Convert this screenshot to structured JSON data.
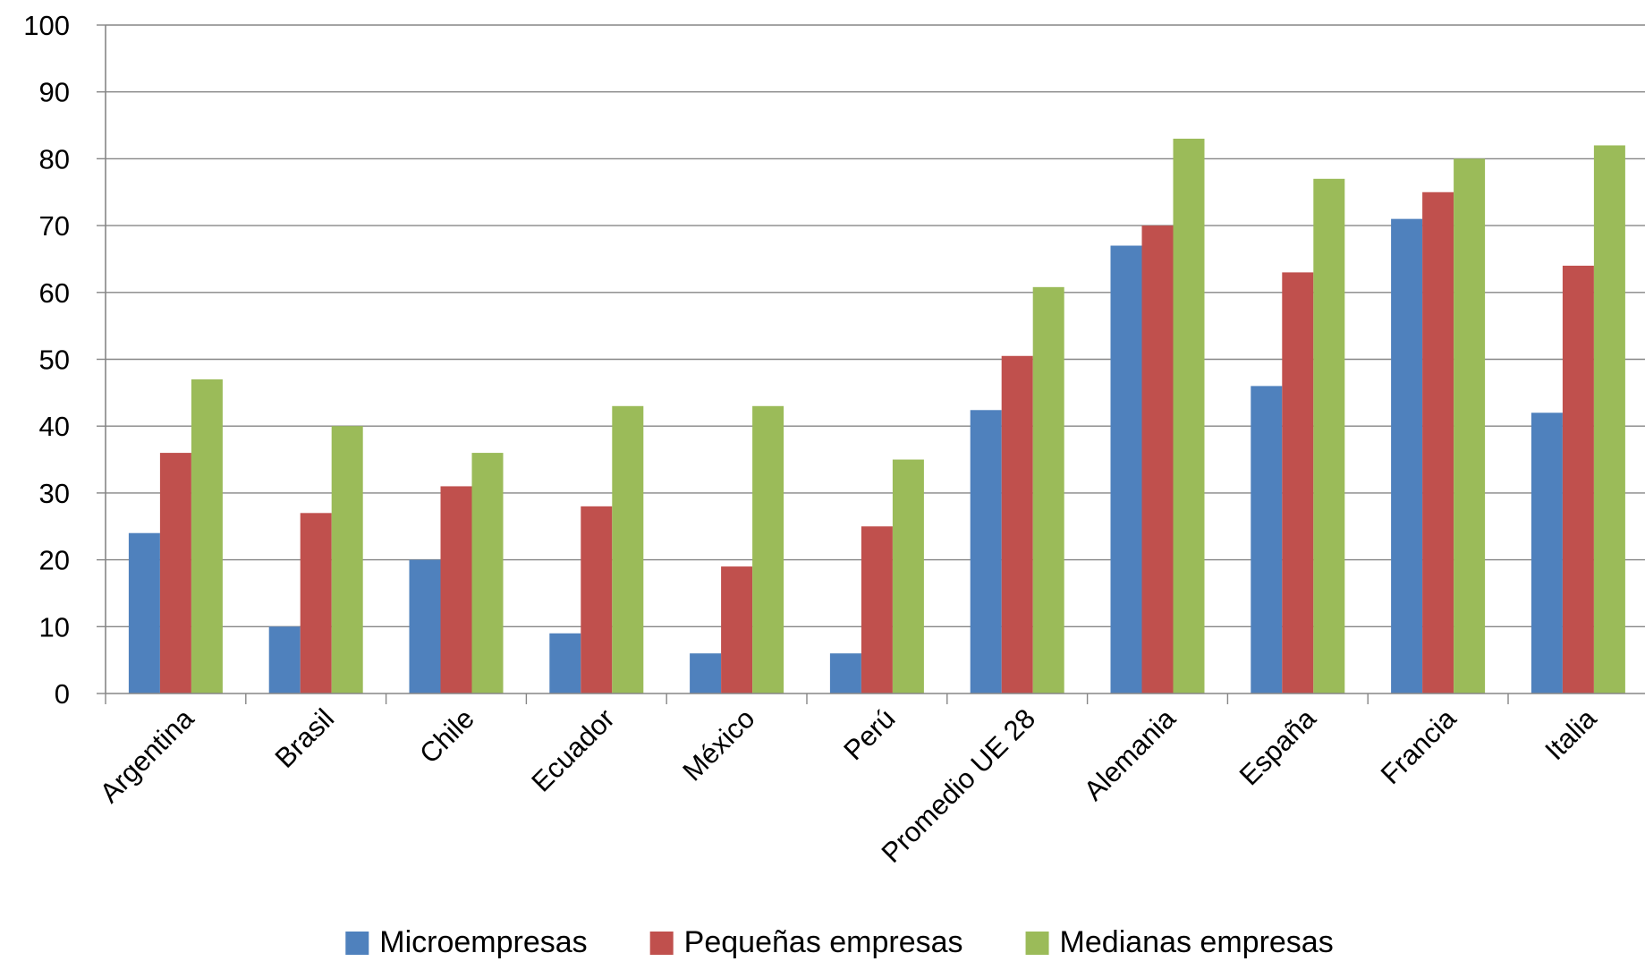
{
  "chart_data": {
    "type": "bar",
    "title": "",
    "xlabel": "",
    "ylabel": "",
    "ylim": [
      0,
      100
    ],
    "yticks": [
      0,
      10,
      20,
      30,
      40,
      50,
      60,
      70,
      80,
      90,
      100
    ],
    "grid": true,
    "legend_position": "bottom",
    "categories": [
      "Argentina",
      "Brasil",
      "Chile",
      "Ecuador",
      "México",
      "Perú",
      "Promedio UE 28",
      "Alemania",
      "España",
      "Francia",
      "Italia"
    ],
    "series": [
      {
        "name": "Microempresas",
        "color": "#4F81BD",
        "values": [
          24,
          10,
          20,
          9,
          6,
          6,
          42.4,
          67,
          46,
          71,
          42
        ]
      },
      {
        "name": "Pequeñas empresas",
        "color": "#C0504D",
        "values": [
          36,
          27,
          31,
          28,
          19,
          25,
          50.5,
          70,
          63,
          75,
          64
        ]
      },
      {
        "name": "Medianas empresas",
        "color": "#9BBB59",
        "values": [
          47,
          40,
          36,
          43,
          43,
          35,
          60.8,
          83,
          77,
          80,
          82
        ]
      }
    ]
  }
}
